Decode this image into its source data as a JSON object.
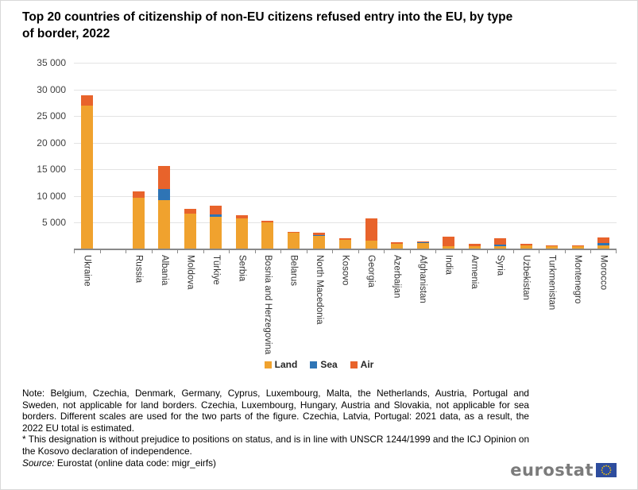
{
  "title": "Top 20 countries of citizenship of non-EU citizens refused entry into the EU, by type of border, 2022",
  "chart_data": {
    "type": "bar",
    "stacked": true,
    "title": "Top 20 countries of citizenship of non-EU citizens refused entry into the EU, by type of border, 2022",
    "categories": [
      "Ukraine",
      "Russia",
      "Albania",
      "Moldova",
      "Türkiye",
      "Serbia",
      "Bosnia and Herzegovina",
      "Belarus",
      "North Macedonia",
      "Kosovo",
      "Georgia",
      "Azerbaijan",
      "Afghanistan",
      "India",
      "Armenia",
      "Syria",
      "Uzbekistan",
      "Turkmenistan",
      "Montenegro",
      "Morocco"
    ],
    "series": [
      {
        "name": "Land",
        "color": "#F0A22E",
        "values": [
          26800,
          9500,
          9100,
          6500,
          5900,
          5700,
          4900,
          3100,
          2400,
          1700,
          1500,
          900,
          1000,
          500,
          500,
          500,
          600,
          500,
          550,
          600
        ]
      },
      {
        "name": "Sea",
        "color": "#2E74B5",
        "values": [
          0,
          0,
          2000,
          0,
          500,
          0,
          0,
          0,
          100,
          0,
          0,
          0,
          150,
          0,
          0,
          300,
          0,
          0,
          0,
          450
        ]
      },
      {
        "name": "Air",
        "color": "#E8632B",
        "values": [
          2000,
          1200,
          4400,
          900,
          1700,
          600,
          300,
          100,
          500,
          300,
          4200,
          250,
          150,
          1700,
          350,
          1200,
          300,
          150,
          100,
          1000
        ]
      }
    ],
    "ylim": [
      0,
      35000
    ],
    "ytick_step": 5000,
    "grid": "horizontal-only",
    "legend_position": "bottom",
    "gap_after_category_index": 0,
    "xlabel": "",
    "ylabel": ""
  },
  "notes": {
    "note_text": "Note: Belgium, Czechia, Denmark, Germany, Cyprus, Luxembourg, Malta, the Netherlands, Austria, Portugal and Sweden, not applicable for land borders. Czechia, Luxembourg, Hungary, Austria and Slovakia, not applicable for sea borders. Different scales are used for the two parts of the figure. Czechia, Latvia, Portugal: 2021 data, as a result, the 2022 EU total is estimated.",
    "footnote_text": "* This designation is without prejudice to positions on status, and is in line with UNSCR 1244/1999 and the ICJ Opinion on the Kosovo declaration of independence."
  },
  "source": {
    "prefix": "Source:",
    "text": " Eurostat (online data code: migr_eirfs)"
  },
  "logo": {
    "text": "eurostat",
    "flag_blue": "#2E4D9E",
    "star_yellow": "#FFCC00"
  }
}
